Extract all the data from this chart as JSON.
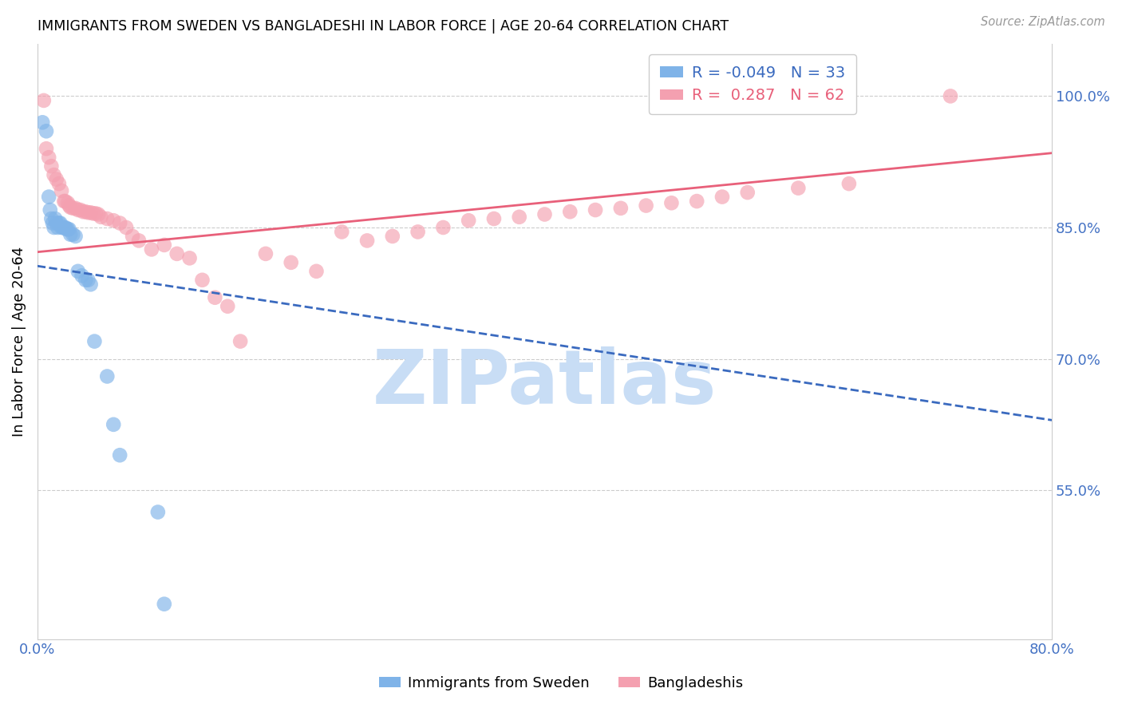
{
  "title": "IMMIGRANTS FROM SWEDEN VS BANGLADESHI IN LABOR FORCE | AGE 20-64 CORRELATION CHART",
  "source": "Source: ZipAtlas.com",
  "ylabel": "In Labor Force | Age 20-64",
  "xlim": [
    0.0,
    0.8
  ],
  "ylim": [
    0.38,
    1.06
  ],
  "xticks": [
    0.0,
    0.1,
    0.2,
    0.3,
    0.4,
    0.5,
    0.6,
    0.7,
    0.8
  ],
  "xticklabels": [
    "0.0%",
    "",
    "",
    "",
    "",
    "",
    "",
    "",
    "80.0%"
  ],
  "right_yticks": [
    0.55,
    0.7,
    0.85,
    1.0
  ],
  "right_yticklabels": [
    "55.0%",
    "70.0%",
    "85.0%",
    "100.0%"
  ],
  "legend_blue_r": "-0.049",
  "legend_blue_n": "33",
  "legend_pink_r": "0.287",
  "legend_pink_n": "62",
  "blue_color": "#7fb3e8",
  "pink_color": "#f4a0b0",
  "blue_line_color": "#3a6abf",
  "pink_line_color": "#e8607a",
  "axis_color": "#4472c4",
  "watermark": "ZIPatlas",
  "watermark_color": "#c8ddf5",
  "sweden_x": [
    0.004,
    0.007,
    0.009,
    0.01,
    0.011,
    0.012,
    0.013,
    0.014,
    0.015,
    0.016,
    0.017,
    0.018,
    0.019,
    0.02,
    0.021,
    0.022,
    0.023,
    0.024,
    0.025,
    0.026,
    0.028,
    0.03,
    0.032,
    0.035,
    0.038,
    0.04,
    0.042,
    0.045,
    0.055,
    0.06,
    0.065,
    0.095,
    0.1
  ],
  "sweden_y": [
    0.97,
    0.96,
    0.885,
    0.87,
    0.86,
    0.855,
    0.85,
    0.86,
    0.855,
    0.85,
    0.855,
    0.855,
    0.85,
    0.85,
    0.85,
    0.85,
    0.848,
    0.848,
    0.848,
    0.842,
    0.842,
    0.84,
    0.8,
    0.795,
    0.79,
    0.79,
    0.785,
    0.72,
    0.68,
    0.625,
    0.59,
    0.525,
    0.42
  ],
  "bangla_x": [
    0.005,
    0.007,
    0.009,
    0.011,
    0.013,
    0.015,
    0.017,
    0.019,
    0.021,
    0.022,
    0.024,
    0.025,
    0.026,
    0.028,
    0.03,
    0.032,
    0.034,
    0.036,
    0.038,
    0.04,
    0.042,
    0.044,
    0.046,
    0.048,
    0.05,
    0.055,
    0.06,
    0.065,
    0.07,
    0.075,
    0.08,
    0.09,
    0.1,
    0.11,
    0.12,
    0.13,
    0.14,
    0.15,
    0.16,
    0.18,
    0.2,
    0.22,
    0.24,
    0.26,
    0.28,
    0.3,
    0.32,
    0.34,
    0.36,
    0.38,
    0.4,
    0.42,
    0.44,
    0.46,
    0.48,
    0.5,
    0.52,
    0.54,
    0.56,
    0.6,
    0.64,
    0.72
  ],
  "bangla_y": [
    0.995,
    0.94,
    0.93,
    0.92,
    0.91,
    0.905,
    0.9,
    0.892,
    0.88,
    0.88,
    0.878,
    0.875,
    0.873,
    0.872,
    0.872,
    0.87,
    0.87,
    0.868,
    0.868,
    0.867,
    0.867,
    0.866,
    0.866,
    0.865,
    0.862,
    0.86,
    0.858,
    0.855,
    0.85,
    0.84,
    0.835,
    0.825,
    0.83,
    0.82,
    0.815,
    0.79,
    0.77,
    0.76,
    0.72,
    0.82,
    0.81,
    0.8,
    0.845,
    0.835,
    0.84,
    0.845,
    0.85,
    0.858,
    0.86,
    0.862,
    0.865,
    0.868,
    0.87,
    0.872,
    0.875,
    0.878,
    0.88,
    0.885,
    0.89,
    0.895,
    0.9,
    1.0
  ]
}
